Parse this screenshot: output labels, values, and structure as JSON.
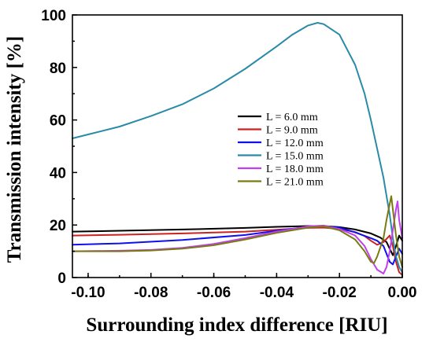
{
  "chart_data": {
    "type": "line",
    "xlabel": "Surrounding index difference [RIU]",
    "ylabel": "Transmission intensity [%]",
    "xlim": [
      -0.105,
      0.0
    ],
    "ylim": [
      0,
      100
    ],
    "x_ticks": [
      -0.1,
      -0.08,
      -0.06,
      -0.04,
      -0.02,
      0.0
    ],
    "x_tick_labels": [
      "-0.10",
      "-0.08",
      "-0.06",
      "-0.04",
      "-0.02",
      "0.00"
    ],
    "y_ticks": [
      0,
      20,
      40,
      60,
      80,
      100
    ],
    "y_tick_labels": [
      "0",
      "20",
      "40",
      "60",
      "80",
      "100"
    ],
    "grid": false,
    "legend_position": "center-right",
    "series": [
      {
        "name": "L = 6.0 mm",
        "color": "#000000",
        "x": [
          -0.105,
          -0.09,
          -0.07,
          -0.05,
          -0.04,
          -0.03,
          -0.025,
          -0.02,
          -0.015,
          -0.01,
          -0.007,
          -0.005,
          -0.004,
          -0.003,
          -0.002,
          -0.001,
          0.0
        ],
        "y": [
          17.5,
          17.8,
          18.3,
          18.9,
          19.3,
          19.6,
          19.6,
          19.2,
          18.3,
          16.8,
          15.2,
          13.5,
          11.0,
          8.5,
          12.0,
          16.0,
          14.0
        ]
      },
      {
        "name": "L = 9.0 mm",
        "color": "#cc2222",
        "x": [
          -0.105,
          -0.09,
          -0.07,
          -0.05,
          -0.04,
          -0.03,
          -0.025,
          -0.02,
          -0.015,
          -0.012,
          -0.01,
          -0.008,
          -0.006,
          -0.004,
          -0.003,
          -0.002,
          -0.001,
          0.0
        ],
        "y": [
          16.0,
          16.3,
          16.8,
          17.5,
          18.2,
          18.9,
          19.0,
          18.5,
          17.3,
          15.8,
          14.0,
          12.5,
          13.5,
          16.0,
          12.0,
          6.0,
          2.0,
          1.0
        ]
      },
      {
        "name": "L = 12.0 mm",
        "color": "#1010ee",
        "x": [
          -0.105,
          -0.09,
          -0.07,
          -0.05,
          -0.04,
          -0.03,
          -0.025,
          -0.02,
          -0.015,
          -0.01,
          -0.008,
          -0.006,
          -0.005,
          -0.004,
          -0.003,
          -0.002,
          -0.001,
          0.0
        ],
        "y": [
          12.5,
          13.0,
          14.3,
          16.2,
          17.8,
          19.3,
          19.6,
          19.0,
          17.2,
          15.0,
          14.0,
          12.0,
          9.0,
          6.0,
          5.0,
          8.0,
          11.0,
          9.0
        ]
      },
      {
        "name": "L = 15.0 mm",
        "color": "#2a8aa8",
        "x": [
          -0.105,
          -0.1,
          -0.09,
          -0.08,
          -0.07,
          -0.06,
          -0.05,
          -0.04,
          -0.035,
          -0.03,
          -0.027,
          -0.025,
          -0.02,
          -0.015,
          -0.012,
          -0.01,
          -0.008,
          -0.006,
          -0.005,
          -0.004,
          -0.003,
          -0.002,
          -0.001,
          0.0
        ],
        "y": [
          53.0,
          54.5,
          57.5,
          61.5,
          66.0,
          72.0,
          79.5,
          88.0,
          92.5,
          96.0,
          97.0,
          96.5,
          92.5,
          81.0,
          70.0,
          60.0,
          49.0,
          38.0,
          31.0,
          24.0,
          15.0,
          8.0,
          4.0,
          2.0
        ]
      },
      {
        "name": "L = 18.0 mm",
        "color": "#c040f0",
        "x": [
          -0.105,
          -0.09,
          -0.08,
          -0.07,
          -0.06,
          -0.05,
          -0.04,
          -0.03,
          -0.025,
          -0.02,
          -0.015,
          -0.012,
          -0.01,
          -0.008,
          -0.006,
          -0.005,
          -0.004,
          -0.003,
          -0.002,
          -0.0015,
          -0.001,
          0.0
        ],
        "y": [
          10.0,
          10.2,
          10.5,
          11.3,
          12.8,
          15.0,
          17.5,
          19.5,
          19.8,
          18.5,
          16.0,
          12.0,
          7.0,
          3.0,
          1.5,
          4.0,
          10.0,
          18.0,
          26.0,
          29.0,
          22.0,
          15.0
        ]
      },
      {
        "name": "L = 21.0 mm",
        "color": "#7a7a10",
        "x": [
          -0.105,
          -0.09,
          -0.08,
          -0.07,
          -0.06,
          -0.05,
          -0.04,
          -0.03,
          -0.025,
          -0.02,
          -0.015,
          -0.012,
          -0.01,
          -0.009,
          -0.008,
          -0.006,
          -0.005,
          -0.004,
          -0.0035,
          -0.003,
          -0.002,
          -0.001,
          0.0
        ],
        "y": [
          10.0,
          10.0,
          10.3,
          11.0,
          12.3,
          14.5,
          17.0,
          19.0,
          19.5,
          18.0,
          14.5,
          10.0,
          6.0,
          5.5,
          8.0,
          15.0,
          22.0,
          28.0,
          31.0,
          26.0,
          16.0,
          8.0,
          4.0
        ]
      }
    ]
  }
}
